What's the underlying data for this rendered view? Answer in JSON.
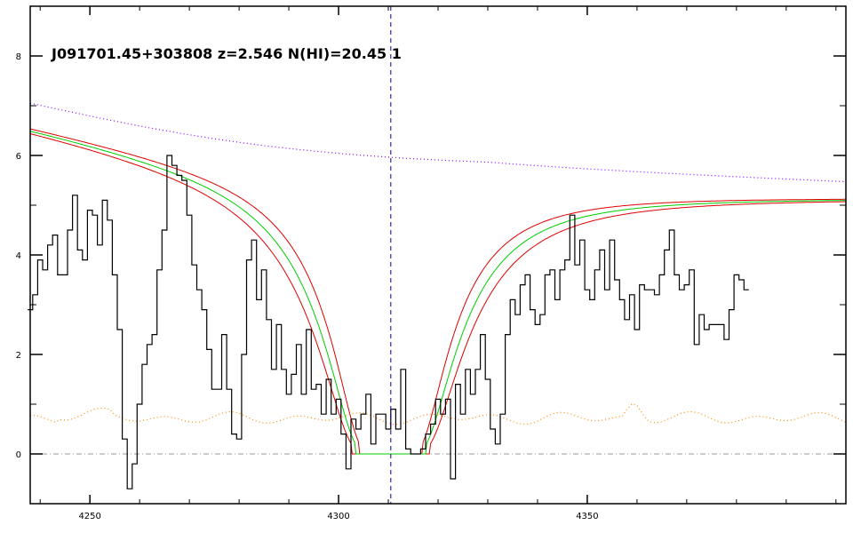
{
  "chart_data": {
    "type": "line",
    "title": "J091701.45+303808 z=2.546 N(HI)=20.45 1",
    "xlabel": "",
    "ylabel": "",
    "xlim": [
      4238,
      4402
    ],
    "ylim": [
      -1.0,
      9.0
    ],
    "x_ticks": [
      4250,
      4300,
      4350
    ],
    "y_ticks": [
      0,
      2,
      4,
      6,
      8
    ],
    "grid": false,
    "marker_x": 4310.5,
    "colors": {
      "flux": "#000000",
      "error": "#ff8800",
      "continuum": "#8800ff",
      "model_best": "#00cc00",
      "model_bounds": "#dd0000",
      "zero_line": "#999999",
      "marker": "#0000aa"
    },
    "series": [
      {
        "key": "flux",
        "style": "step",
        "x": [
          4238,
          4239,
          4240,
          4241,
          4242,
          4243,
          4244,
          4245,
          4246,
          4247,
          4248,
          4249,
          4250,
          4251,
          4252,
          4253,
          4254,
          4255,
          4256,
          4257,
          4258,
          4259,
          4260,
          4261,
          4262,
          4263,
          4264,
          4265,
          4266,
          4267,
          4268,
          4269,
          4270,
          4271,
          4272,
          4273,
          4274,
          4275,
          4276,
          4277,
          4278,
          4279,
          4280,
          4281,
          4282,
          4283,
          4284,
          4285,
          4286,
          4287,
          4288,
          4289,
          4290,
          4291,
          4292,
          4293,
          4294,
          4295,
          4296,
          4297,
          4298,
          4299,
          4300,
          4301,
          4302,
          4303,
          4304,
          4305,
          4306,
          4307,
          4308,
          4309,
          4310,
          4311,
          4312,
          4313,
          4314,
          4315,
          4316,
          4317,
          4318,
          4319,
          4320,
          4321,
          4322,
          4323,
          4324,
          4325,
          4326,
          4327,
          4328,
          4329,
          4330,
          4331,
          4332,
          4333,
          4334,
          4335,
          4336,
          4337,
          4338,
          4339,
          4340,
          4341,
          4342,
          4343,
          4344,
          4345,
          4346,
          4347,
          4348,
          4349,
          4350,
          4351,
          4352,
          4353,
          4354,
          4355,
          4356,
          4357,
          4358,
          4359,
          4360,
          4361,
          4362,
          4363,
          4364,
          4365,
          4366,
          4367,
          4368,
          4369,
          4370,
          4371,
          4372,
          4373,
          4374,
          4375,
          4376,
          4377,
          4378,
          4379,
          4380,
          4381,
          4382
        ],
        "y": [
          2.9,
          3.2,
          3.9,
          3.7,
          4.2,
          4.4,
          3.6,
          3.6,
          4.5,
          5.2,
          4.1,
          3.9,
          4.9,
          4.8,
          4.2,
          5.1,
          4.7,
          3.6,
          2.5,
          0.3,
          -0.7,
          -0.2,
          1.0,
          1.8,
          2.2,
          2.4,
          3.7,
          4.5,
          6.0,
          5.8,
          5.6,
          5.5,
          4.8,
          3.8,
          3.3,
          2.9,
          2.1,
          1.3,
          1.3,
          2.4,
          1.3,
          0.4,
          0.3,
          2.0,
          3.9,
          4.3,
          3.1,
          3.7,
          2.7,
          1.7,
          2.6,
          1.7,
          1.2,
          1.6,
          2.2,
          1.2,
          2.5,
          1.3,
          1.4,
          0.8,
          1.5,
          0.8,
          1.1,
          0.4,
          -0.3,
          0.7,
          0.5,
          0.8,
          1.2,
          0.2,
          0.8,
          0.8,
          0.5,
          0.9,
          0.5,
          1.7,
          0.1,
          0.0,
          0.0,
          0.1,
          0.4,
          0.6,
          1.1,
          0.8,
          1.1,
          -0.5,
          1.4,
          0.8,
          1.7,
          1.2,
          1.7,
          2.4,
          1.5,
          0.5,
          0.2,
          0.8,
          2.4,
          3.1,
          2.8,
          3.4,
          3.6,
          2.9,
          2.6,
          2.8,
          3.6,
          3.7,
          3.1,
          3.7,
          3.9,
          4.8,
          3.8,
          4.3,
          3.3,
          3.1,
          3.7,
          4.1,
          3.3,
          4.3,
          3.5,
          3.1,
          2.7,
          3.2,
          2.5,
          3.4,
          3.3,
          3.3,
          3.2,
          3.6,
          4.1,
          4.5,
          3.6,
          3.3,
          3.4,
          3.7,
          2.2,
          2.8,
          2.5,
          2.6,
          2.6,
          2.6,
          2.3,
          2.9,
          3.6,
          3.5,
          3.3
        ]
      }
    ]
  }
}
